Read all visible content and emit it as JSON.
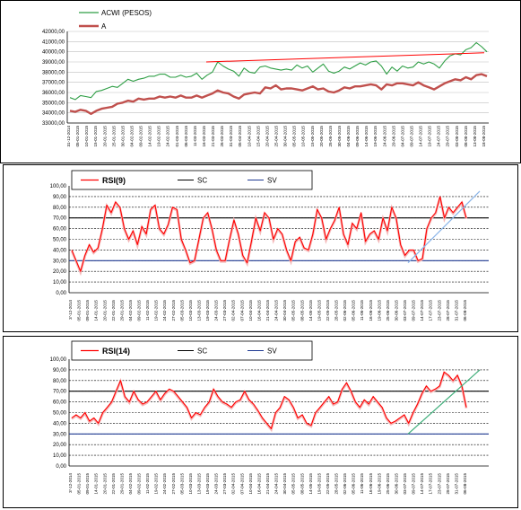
{
  "chart_data": [
    {
      "type": "line",
      "ylim": [
        33000,
        42000
      ],
      "y_ticks": [
        "33000,00",
        "34000,00",
        "35000,00",
        "36000,00",
        "37000,00",
        "38000,00",
        "39000,00",
        "40000,00",
        "41000,00",
        "42000,00"
      ],
      "x_labels": [
        "31-12-2014",
        "05-01-2015",
        "10-01-2015",
        "15-01-2015",
        "20-01-2015",
        "25-01-2015",
        "30-01-2015",
        "04-02-2015",
        "09-02-2015",
        "14-02-2015",
        "19-02-2015",
        "24-02-2015",
        "01-03-2015",
        "06-03-2015",
        "11-03-2015",
        "16-03-2015",
        "21-03-2015",
        "26-03-2015",
        "31-03-2015",
        "05-04-2015",
        "10-04-2015",
        "15-04-2015",
        "20-04-2015",
        "25-04-2015",
        "30-04-2015",
        "05-05-2015",
        "10-05-2015",
        "15-05-2015",
        "20-05-2015",
        "25-05-2015",
        "30-05-2015",
        "04-06-2015",
        "09-06-2015",
        "14-06-2015",
        "19-06-2015",
        "24-06-2015",
        "29-06-2015",
        "04-07-2015",
        "09-07-2015",
        "14-07-2015",
        "19-07-2015",
        "24-07-2015",
        "29-07-2015",
        "03-08-2015",
        "08-08-2015",
        "13-08-2015",
        "18-08-2015"
      ],
      "grid": true,
      "legend_position": "top-left",
      "series": [
        {
          "name": "ACWI (PESOS)",
          "color": "#2e9e45",
          "values": [
            35500,
            35300,
            35700,
            35600,
            35500,
            36100,
            36200,
            36400,
            36600,
            36500,
            36900,
            37300,
            37100,
            37300,
            37400,
            37600,
            37600,
            37800,
            37800,
            37500,
            37500,
            37700,
            37500,
            37600,
            37900,
            37300,
            37700,
            38000,
            39000,
            38600,
            38300,
            38100,
            37600,
            38400,
            38000,
            37900,
            38500,
            38600,
            38400,
            38300,
            38200,
            38300,
            38200,
            38700,
            38400,
            38600,
            38000,
            38400,
            38800,
            38100,
            37900,
            38100,
            38500,
            38300,
            38600,
            38900,
            38700,
            39000,
            39100,
            38600,
            37800,
            38500,
            38100,
            38600,
            38400,
            38500,
            39000,
            38800,
            39000,
            38800,
            38400,
            39100,
            39600,
            39800,
            39700,
            40200,
            40400,
            40900,
            40500,
            40000
          ]
        },
        {
          "name": "A",
          "color": "#c0504d",
          "values": [
            34200,
            34100,
            34300,
            34200,
            33900,
            34200,
            34400,
            34500,
            34600,
            34900,
            35000,
            35200,
            35100,
            35400,
            35300,
            35400,
            35400,
            35600,
            35500,
            35600,
            35500,
            35700,
            35500,
            35500,
            35700,
            35500,
            35700,
            35900,
            36200,
            36000,
            35900,
            35600,
            35400,
            35800,
            35900,
            36000,
            35900,
            36500,
            36400,
            36700,
            36300,
            36400,
            36400,
            36300,
            36200,
            36400,
            36600,
            36300,
            36400,
            36100,
            36000,
            36200,
            36500,
            36400,
            36600,
            36600,
            36700,
            36800,
            36700,
            36300,
            36800,
            36700,
            36900,
            36900,
            36800,
            36700,
            37000,
            36700,
            36500,
            36300,
            36600,
            36900,
            37100,
            37300,
            37200,
            37500,
            37300,
            37700,
            37800,
            37600
          ]
        },
        {
          "name": "",
          "color": "#ff0000",
          "values": [
            39000,
            39900
          ]
        }
      ]
    },
    {
      "type": "line",
      "ylim": [
        0,
        100
      ],
      "y_ticks": [
        "0,00",
        "10,00",
        "20,00",
        "30,00",
        "40,00",
        "50,00",
        "60,00",
        "70,00",
        "80,00",
        "90,00",
        "100,00"
      ],
      "x_labels": [
        "3'-12-2014",
        "05-01-2015",
        "09-01-2015",
        "14-01-2015",
        "20-01-2015",
        "22-01-2015",
        "29-01-2015",
        "04-02-2015",
        "09-02-2015",
        "11-02-2015",
        "19-02-2015",
        "24-02-2015",
        "27-02-2015",
        "05-03-2015",
        "10-03-2015",
        "13-03-2015",
        "19-03-2015",
        "24-03-2015",
        "27-03-2015",
        "02-04-2015",
        "07-04-2015",
        "10-04-2015",
        "16-04-2015",
        "21-04-2015",
        "24-04-2015",
        "30-04-2015",
        "05-05-2015",
        "08-05-2015",
        "14-05-2015",
        "19-05-2015",
        "22-05-2015",
        "28-05-2015",
        "02-06-2015",
        "05-06-2015",
        "11-06-2015",
        "16-06-2015",
        "19-06-2015",
        "25-06-2015",
        "30-06-2015",
        "03-07-2015",
        "09-07-2015",
        "14-07-2015",
        "17-07-2015",
        "23-07-2015",
        "28-07-2015",
        "31-07-2015",
        "06-08-2015"
      ],
      "grid": true,
      "legend_position": "top-left",
      "reference_lines": [
        {
          "value": 70,
          "color": "#000000"
        },
        {
          "value": 30,
          "color": "#1f3a93"
        }
      ],
      "series": [
        {
          "name": "RSI(9)",
          "color": "#ff0000",
          "values": [
            40,
            30,
            20,
            35,
            45,
            38,
            42,
            60,
            82,
            75,
            85,
            80,
            60,
            50,
            58,
            45,
            62,
            55,
            78,
            82,
            60,
            55,
            64,
            80,
            78,
            50,
            40,
            28,
            30,
            50,
            70,
            75,
            60,
            40,
            30,
            30,
            50,
            68,
            55,
            35,
            28,
            48,
            70,
            58,
            75,
            70,
            50,
            60,
            55,
            40,
            30,
            48,
            52,
            42,
            40,
            55,
            78,
            70,
            50,
            60,
            68,
            80,
            55,
            45,
            65,
            60,
            75,
            48,
            55,
            58,
            50,
            70,
            58,
            80,
            70,
            45,
            35,
            40,
            40,
            30,
            32,
            60,
            70,
            75,
            90,
            70,
            80,
            75,
            80,
            85,
            70
          ]
        },
        {
          "name": "SC",
          "color": "#000000",
          "values": []
        },
        {
          "name": "SV",
          "color": "#1f3a93",
          "values": []
        }
      ],
      "trendline": {
        "color": "#8ab4e8",
        "values": [
          28,
          95
        ]
      }
    },
    {
      "type": "line",
      "ylim": [
        0,
        100
      ],
      "y_ticks": [
        "0,00",
        "10,00",
        "20,00",
        "30,00",
        "40,00",
        "50,00",
        "60,00",
        "70,00",
        "80,00",
        "90,00",
        "100,00"
      ],
      "x_labels": [
        "3'-12-2014",
        "05-01-2015",
        "09-01-2015",
        "14-01-2015",
        "20-01-2015",
        "22-01-2015",
        "29-01-2015",
        "04-02-2015",
        "09-02-2015",
        "11-02-2015",
        "19-02-2015",
        "24-02-2015",
        "27-02-2015",
        "05-03-2015",
        "10-03-2015",
        "13-03-2015",
        "19-03-2015",
        "24-03-2015",
        "27-03-2015",
        "02-04-2015",
        "07-04-2015",
        "10-04-2015",
        "16-04-2015",
        "21-04-2015",
        "24-04-2015",
        "30-04-2015",
        "05-05-2015",
        "08-05-2015",
        "14-05-2015",
        "19-05-2015",
        "22-05-2015",
        "28-05-2015",
        "02-06-2015",
        "05-06-2015",
        "11-06-2015",
        "16-06-2015",
        "19-06-2015",
        "25-06-2015",
        "30-06-2015",
        "03-07-2015",
        "09-07-2015",
        "14-07-2015",
        "17-07-2015",
        "23-07-2015",
        "28-07-2015",
        "31-07-2015",
        "06-08-2015"
      ],
      "grid": true,
      "legend_position": "top-left",
      "reference_lines": [
        {
          "value": 70,
          "color": "#000000"
        },
        {
          "value": 30,
          "color": "#1f3a93"
        }
      ],
      "series": [
        {
          "name": "RSI(14)",
          "color": "#ff0000",
          "values": [
            45,
            48,
            45,
            50,
            42,
            45,
            40,
            50,
            55,
            60,
            70,
            80,
            65,
            60,
            70,
            62,
            58,
            60,
            65,
            70,
            62,
            68,
            72,
            70,
            65,
            60,
            55,
            45,
            50,
            48,
            55,
            60,
            72,
            65,
            60,
            58,
            55,
            60,
            62,
            70,
            62,
            58,
            52,
            45,
            40,
            35,
            50,
            55,
            65,
            62,
            55,
            45,
            48,
            40,
            38,
            50,
            55,
            60,
            65,
            58,
            60,
            72,
            78,
            70,
            60,
            55,
            62,
            58,
            65,
            60,
            55,
            45,
            40,
            42,
            45,
            48,
            40,
            50,
            58,
            68,
            75,
            70,
            72,
            75,
            88,
            85,
            80,
            85,
            75,
            55
          ]
        },
        {
          "name": "SC",
          "color": "#000000",
          "values": []
        },
        {
          "name": "SV",
          "color": "#1f3a93",
          "values": []
        }
      ],
      "trendline": {
        "color": "#3fae7a",
        "values": [
          30,
          90
        ]
      }
    }
  ]
}
